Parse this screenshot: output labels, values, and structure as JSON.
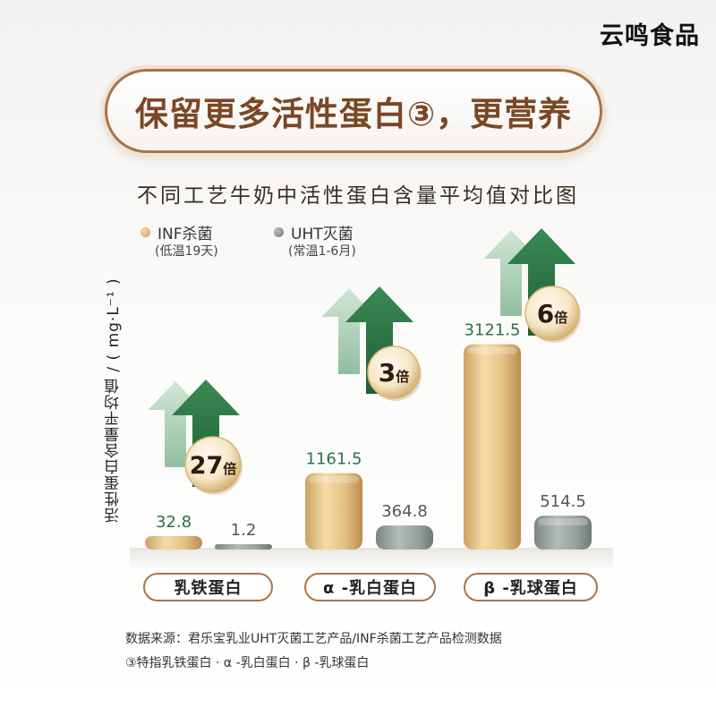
{
  "brand": "云鸣食品",
  "headline": "保留更多活性蛋白③，更营养",
  "chart_data": {
    "type": "bar",
    "title": "不同工艺牛奶中活性蛋白含量平均值对比图",
    "ylabel": "活性蛋白含量平均值 / ( mg·L⁻¹ )",
    "categories": [
      "乳铁蛋白",
      "α -乳白蛋白",
      "β -乳球蛋白"
    ],
    "series": [
      {
        "name": "INF杀菌",
        "note": "(低温19天)",
        "color": "#e2c182",
        "values": [
          32.8,
          1161.5,
          3121.5
        ],
        "labels": [
          "32.8",
          "1161.5",
          "3121.5"
        ]
      },
      {
        "name": "UHT灭菌",
        "note": "(常温1-6月)",
        "color": "#8e9a94",
        "values": [
          1.2,
          364.8,
          514.5
        ],
        "labels": [
          "1.2",
          "364.8",
          "514.5"
        ]
      }
    ],
    "multipliers": [
      "27倍",
      "3倍",
      "6倍"
    ],
    "ylim": [
      0,
      3200
    ],
    "grid": false,
    "legend": "top-left"
  },
  "colors": {
    "accent_brown": "#a7744a",
    "value_green": "#2f6e4f",
    "arrow_green": "#2f7a45",
    "arrow_light": "#a9cfb3"
  },
  "footnotes": [
    "数据来源：君乐宝乳业UHT灭菌工艺产品/INF杀菌工艺产品检测数据",
    "③特指乳铁蛋白 · α -乳白蛋白 · β -乳球蛋白"
  ]
}
